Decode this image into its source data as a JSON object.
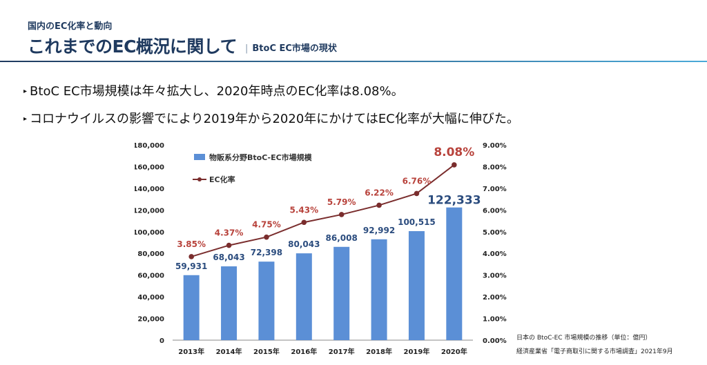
{
  "header": {
    "kicker": "国内のEC化率と動向",
    "title": "これまでのEC概況に関して",
    "subtitle": "BtoC EC市場の現状",
    "subtitle_divider": "|"
  },
  "bullets": [
    {
      "marker": "▸",
      "text": "BtoC EC市場規模は年々拡大し、2020年時点のEC化率は8.08%。"
    },
    {
      "marker": "▸",
      "text": "コロナウイルスの影響でにより2019年から2020年にかけてはEC化率が大幅に伸びた。"
    }
  ],
  "source": {
    "line1": "日本の BtoC-EC 市場規模の推移（単位：億円）",
    "line2": "経済産業省「電子商取引に関する市場調査」2021年9月"
  },
  "colors": {
    "bar": "#5b8fd6",
    "line": "#7a2d2d",
    "title": "#1f3a5f",
    "bar_label": "#2b4c7e",
    "rate_label": "#b8433c"
  },
  "chart_data": {
    "type": "bar",
    "categories": [
      "2013年",
      "2014年",
      "2015年",
      "2016年",
      "2017年",
      "2018年",
      "2019年",
      "2020年"
    ],
    "series": [
      {
        "name": "物販系分野BtoC-EC市場規模",
        "type": "bar",
        "axis": "left",
        "values": [
          59931,
          68043,
          72398,
          80043,
          86008,
          92992,
          100515,
          122333
        ],
        "labels": [
          "59,931",
          "68,043",
          "72,398",
          "80,043",
          "86,008",
          "92,992",
          "100,515",
          "122,333"
        ]
      },
      {
        "name": "EC化率",
        "type": "line",
        "axis": "right",
        "values": [
          3.85,
          4.37,
          4.75,
          5.43,
          5.79,
          6.22,
          6.76,
          8.08
        ],
        "labels": [
          "3.85%",
          "4.37%",
          "4.75%",
          "5.43%",
          "5.79%",
          "6.22%",
          "6.76%",
          "8.08%"
        ]
      }
    ],
    "y_left": {
      "min": 0,
      "max": 180000,
      "ticks": [
        "0",
        "20,000",
        "40,000",
        "60,000",
        "80,000",
        "100,000",
        "120,000",
        "140,000",
        "160,000",
        "180,000"
      ]
    },
    "y_right": {
      "min": 0,
      "max": 9,
      "ticks": [
        "0.00%",
        "1.00%",
        "2.00%",
        "3.00%",
        "4.00%",
        "5.00%",
        "6.00%",
        "7.00%",
        "8.00%",
        "9.00%"
      ]
    },
    "grid": false,
    "legend": "top-left"
  }
}
